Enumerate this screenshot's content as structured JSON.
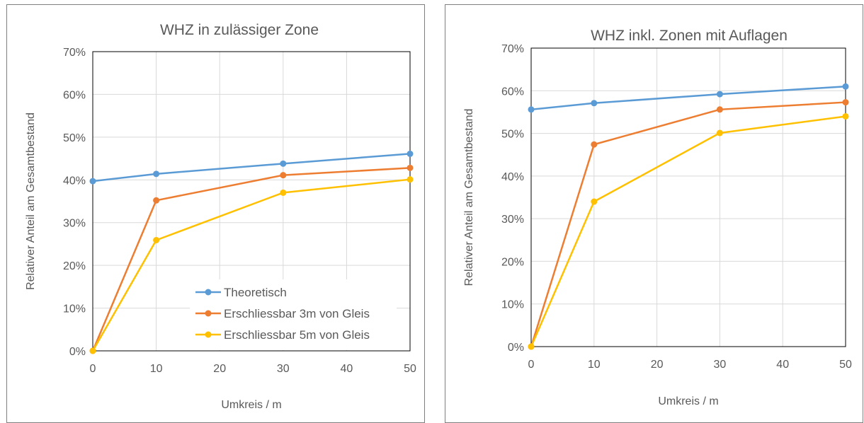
{
  "chart_data": [
    {
      "type": "line",
      "title": "WHZ in zulässiger Zone",
      "xlabel": "Umkreis / m",
      "ylabel": "Relativer Anteil  am Gesamtbestand",
      "xlim": [
        0,
        50
      ],
      "ylim": [
        0,
        0.7
      ],
      "x_ticks": [
        "0",
        "10",
        "20",
        "30",
        "40",
        "50"
      ],
      "y_ticks": [
        "0%",
        "10%",
        "20%",
        "30%",
        "40%",
        "50%",
        "60%",
        "70%"
      ],
      "grid": true,
      "legend": "bottom-right",
      "x": [
        0,
        10,
        30,
        50
      ],
      "series": [
        {
          "name": "Theoretisch",
          "color": "#5b9bd5",
          "values": [
            0.397,
            0.414,
            0.438,
            0.461
          ]
        },
        {
          "name": "Erschliessbar 3m von Gleis",
          "color": "#ed7d31",
          "values": [
            0.0,
            0.352,
            0.411,
            0.428
          ]
        },
        {
          "name": "Erschliessbar 5m von Gleis",
          "color": "#ffc000",
          "values": [
            0.0,
            0.259,
            0.37,
            0.401
          ]
        }
      ]
    },
    {
      "type": "line",
      "title": "WHZ inkl. Zonen mit Auflagen",
      "xlabel": "Umkreis / m",
      "ylabel": "Relativer Anteil  am Gesamtbestand",
      "xlim": [
        0,
        50
      ],
      "ylim": [
        0,
        0.7
      ],
      "x_ticks": [
        "0",
        "10",
        "20",
        "30",
        "40",
        "50"
      ],
      "y_ticks": [
        "0%",
        "10%",
        "20%",
        "30%",
        "40%",
        "50%",
        "60%",
        "70%"
      ],
      "grid": true,
      "legend": "none",
      "x": [
        0,
        10,
        30,
        50
      ],
      "series": [
        {
          "name": "Theoretisch",
          "color": "#5b9bd5",
          "values": [
            0.556,
            0.571,
            0.592,
            0.61
          ]
        },
        {
          "name": "Erschliessbar 3m von Gleis",
          "color": "#ed7d31",
          "values": [
            0.0,
            0.474,
            0.556,
            0.573
          ]
        },
        {
          "name": "Erschliessbar 5m von Gleis",
          "color": "#ffc000",
          "values": [
            0.0,
            0.34,
            0.501,
            0.54
          ]
        }
      ]
    }
  ]
}
